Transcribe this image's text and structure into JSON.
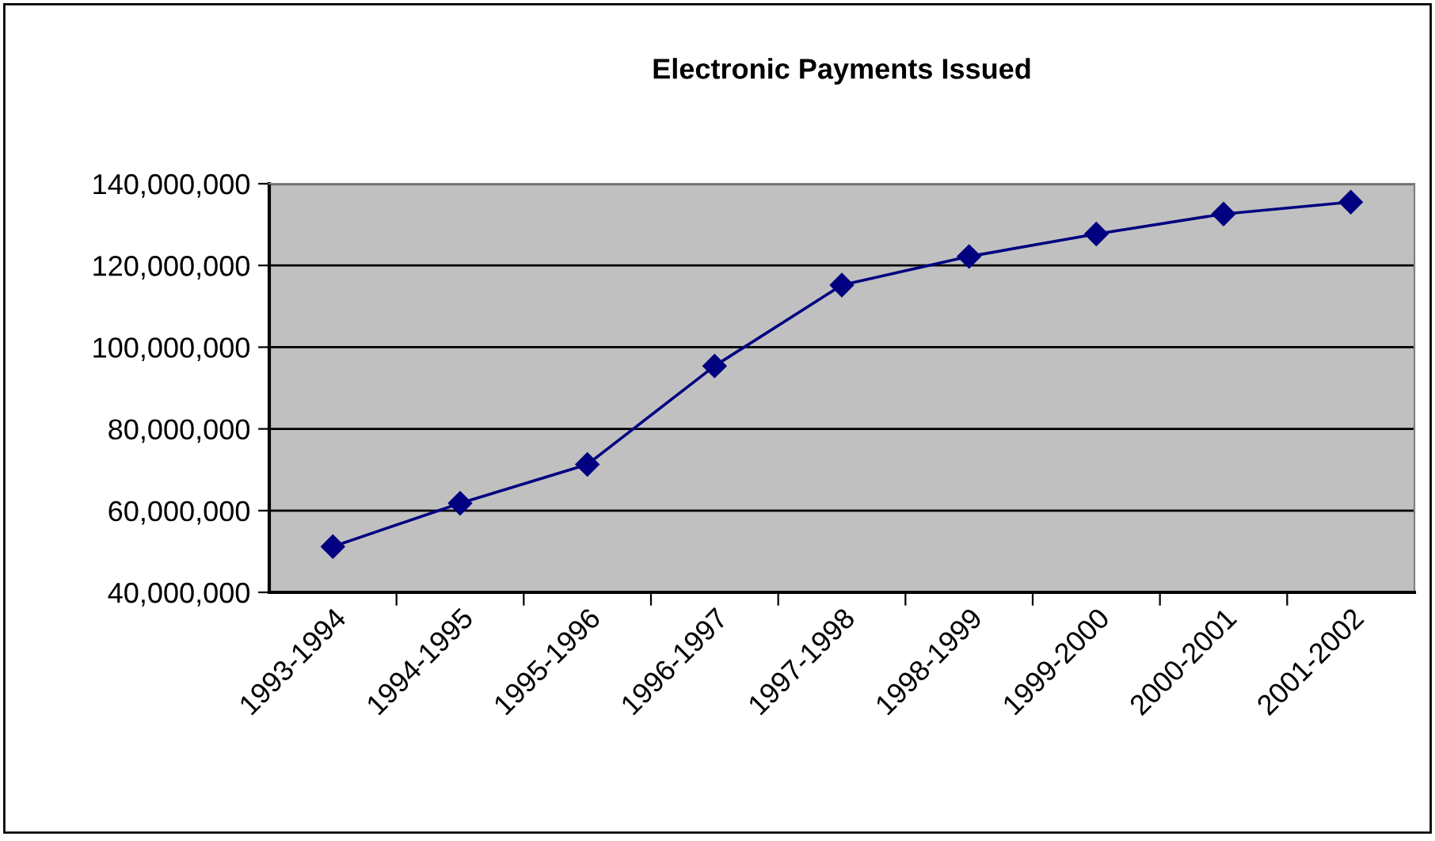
{
  "chart_data": {
    "type": "line",
    "title": "Electronic Payments Issued",
    "categories": [
      "1993-1994",
      "1994-1995",
      "1995-1996",
      "1996-1997",
      "1997-1998",
      "1998-1999",
      "1999-2000",
      "2000-2001",
      "2001-2002"
    ],
    "series": [
      {
        "color": "#000080",
        "values": [
          51200000,
          61800000,
          71300000,
          95400000,
          115200000,
          122200000,
          127700000,
          132600000,
          135500000
        ]
      }
    ],
    "ylim": [
      40000000,
      140000000
    ],
    "yticks": [
      {
        "value": 40000000,
        "label": "40,000,000"
      },
      {
        "value": 60000000,
        "label": "60,000,000"
      },
      {
        "value": 80000000,
        "label": "80,000,000"
      },
      {
        "value": 100000000,
        "label": "100,000,000"
      },
      {
        "value": 120000000,
        "label": "120,000,000"
      },
      {
        "value": 140000000,
        "label": "140,000,000"
      }
    ],
    "grid": "y",
    "marker": "diamond",
    "line_style": "solid"
  }
}
